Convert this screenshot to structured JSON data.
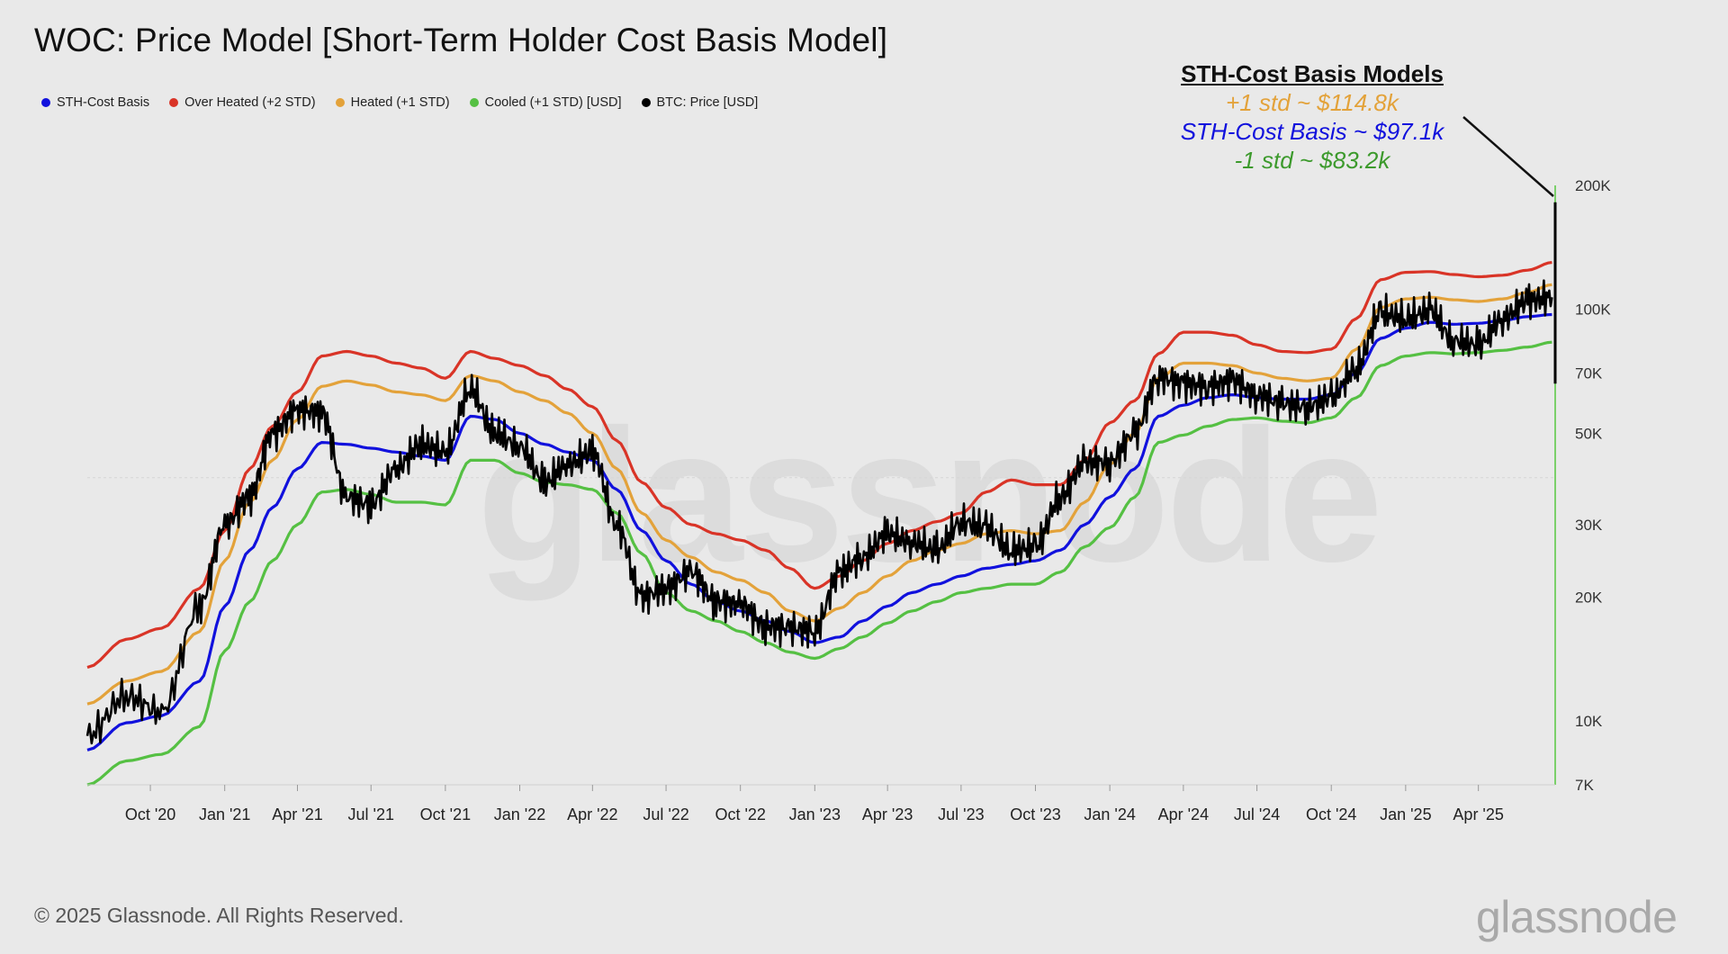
{
  "title": "WOC: Price Model [Short-Term Holder Cost Basis Model]",
  "legend": [
    {
      "label": "STH-Cost Basis",
      "color": "#1111dd"
    },
    {
      "label": "Over Heated (+2 STD)",
      "color": "#d93427"
    },
    {
      "label": "Heated (+1 STD)",
      "color": "#e3a23a"
    },
    {
      "label": "Cooled (+1 STD) [USD]",
      "color": "#55c043"
    },
    {
      "label": "BTC: Price [USD]",
      "color": "#000000"
    }
  ],
  "annotation": {
    "title": "STH-Cost Basis Models",
    "lines": [
      {
        "text": "+1 std ~ $114.8k",
        "color": "#e3a23a"
      },
      {
        "text": "STH-Cost Basis ~ $97.1k",
        "color": "#1111dd"
      },
      {
        "text": "-1 std ~ $83.2k",
        "color": "#3c9a2c"
      }
    ]
  },
  "watermark": "glassnode",
  "footer": "© 2025 Glassnode. All Rights Reserved.",
  "brand": "glassnode",
  "chart_data": {
    "type": "line",
    "y_scale": "log",
    "ylim": [
      7000,
      200000
    ],
    "xlim": [
      "2020-07-15",
      "2025-07-05"
    ],
    "y_ticks": [
      {
        "value": 200000,
        "label": "200K"
      },
      {
        "value": 100000,
        "label": "100K"
      },
      {
        "value": 70000,
        "label": "70K"
      },
      {
        "value": 50000,
        "label": "50K"
      },
      {
        "value": 30000,
        "label": "30K"
      },
      {
        "value": 20000,
        "label": "20K"
      },
      {
        "value": 10000,
        "label": "10K"
      },
      {
        "value": 7000,
        "label": "7K"
      }
    ],
    "x_ticks": [
      {
        "date": "2020-10-01",
        "label": "Oct '20"
      },
      {
        "date": "2021-01-01",
        "label": "Jan '21"
      },
      {
        "date": "2021-04-01",
        "label": "Apr '21"
      },
      {
        "date": "2021-07-01",
        "label": "Jul '21"
      },
      {
        "date": "2021-10-01",
        "label": "Oct '21"
      },
      {
        "date": "2022-01-01",
        "label": "Jan '22"
      },
      {
        "date": "2022-04-01",
        "label": "Apr '22"
      },
      {
        "date": "2022-07-01",
        "label": "Jul '22"
      },
      {
        "date": "2022-10-01",
        "label": "Oct '22"
      },
      {
        "date": "2023-01-01",
        "label": "Jan '23"
      },
      {
        "date": "2023-04-01",
        "label": "Apr '23"
      },
      {
        "date": "2023-07-01",
        "label": "Jul '23"
      },
      {
        "date": "2023-10-01",
        "label": "Oct '23"
      },
      {
        "date": "2024-01-01",
        "label": "Jan '24"
      },
      {
        "date": "2024-04-01",
        "label": "Apr '24"
      },
      {
        "date": "2024-07-01",
        "label": "Jul '24"
      },
      {
        "date": "2024-10-01",
        "label": "Oct '24"
      },
      {
        "date": "2025-01-01",
        "label": "Jan '25"
      },
      {
        "date": "2025-04-01",
        "label": "Apr '25"
      }
    ],
    "x": [
      "2020-07-15",
      "2020-09-01",
      "2020-10-15",
      "2020-12-01",
      "2021-01-01",
      "2021-02-01",
      "2021-03-01",
      "2021-04-01",
      "2021-05-01",
      "2021-06-01",
      "2021-07-01",
      "2021-08-01",
      "2021-09-01",
      "2021-10-01",
      "2021-11-01",
      "2021-12-01",
      "2022-01-01",
      "2022-02-01",
      "2022-03-01",
      "2022-04-01",
      "2022-05-01",
      "2022-06-01",
      "2022-07-01",
      "2022-08-01",
      "2022-09-01",
      "2022-10-01",
      "2022-11-01",
      "2022-12-01",
      "2023-01-01",
      "2023-02-01",
      "2023-03-01",
      "2023-04-01",
      "2023-05-01",
      "2023-06-01",
      "2023-07-01",
      "2023-08-01",
      "2023-09-01",
      "2023-10-01",
      "2023-11-01",
      "2023-12-01",
      "2024-01-01",
      "2024-02-01",
      "2024-03-01",
      "2024-04-01",
      "2024-05-01",
      "2024-06-01",
      "2024-07-01",
      "2024-08-01",
      "2024-09-01",
      "2024-10-01",
      "2024-11-01",
      "2024-12-01",
      "2025-01-01",
      "2025-02-01",
      "2025-03-01",
      "2025-04-01",
      "2025-05-01",
      "2025-06-01",
      "2025-07-01"
    ],
    "series": [
      {
        "name": "Over Heated (+2 STD)",
        "color": "#d93427",
        "values": [
          13500,
          15800,
          16800,
          21000,
          29000,
          41000,
          52000,
          63000,
          77000,
          79000,
          77000,
          74000,
          72000,
          68000,
          79000,
          76000,
          73000,
          69000,
          64000,
          58000,
          48000,
          38000,
          33000,
          30000,
          28500,
          27500,
          26000,
          23500,
          21000,
          22500,
          24500,
          27000,
          29000,
          30500,
          32000,
          36000,
          38500,
          37500,
          37500,
          43000,
          53000,
          60000,
          78000,
          88000,
          88000,
          86500,
          82000,
          79000,
          78500,
          80000,
          95000,
          118000,
          123000,
          123500,
          121500,
          120000,
          121000,
          124500,
          130000
        ]
      },
      {
        "name": "Heated (+1 STD)",
        "color": "#e3a23a",
        "values": [
          11000,
          12500,
          13200,
          16500,
          24500,
          34000,
          43000,
          54000,
          65000,
          67000,
          65500,
          63000,
          62000,
          60000,
          69000,
          67000,
          63000,
          60000,
          56000,
          50000,
          41000,
          32000,
          27500,
          25000,
          23000,
          22000,
          20500,
          18500,
          17500,
          18800,
          20500,
          22500,
          24500,
          26000,
          27000,
          28500,
          29000,
          28500,
          29000,
          34000,
          42000,
          50000,
          68000,
          74000,
          74000,
          73000,
          70000,
          68000,
          67000,
          68000,
          80000,
          101000,
          106000,
          107000,
          105500,
          104500,
          106000,
          110000,
          114800
        ]
      },
      {
        "name": "STH-Cost Basis",
        "color": "#1111dd",
        "values": [
          8500,
          9900,
          10300,
          12500,
          19000,
          26000,
          33000,
          41000,
          47500,
          47000,
          46000,
          45000,
          44000,
          43000,
          55000,
          54000,
          50000,
          47000,
          45000,
          43000,
          36500,
          29000,
          24500,
          21500,
          19500,
          18500,
          17500,
          16500,
          15500,
          16000,
          17500,
          19000,
          20500,
          21500,
          22500,
          23500,
          24000,
          24500,
          26000,
          30000,
          35000,
          41000,
          55000,
          58500,
          61000,
          62000,
          61000,
          60500,
          60500,
          62000,
          70000,
          85000,
          90000,
          93000,
          92000,
          92500,
          94000,
          96000,
          97100
        ]
      },
      {
        "name": "Cooled (+1 STD) [USD]",
        "color": "#55c043",
        "values": [
          7000,
          8000,
          8300,
          9700,
          14800,
          19500,
          24500,
          30000,
          36000,
          36500,
          35500,
          34000,
          34000,
          33500,
          43000,
          43000,
          40000,
          38000,
          37500,
          36500,
          32000,
          25500,
          20500,
          18500,
          17500,
          16500,
          15500,
          14700,
          14200,
          15000,
          16000,
          17300,
          18500,
          19500,
          20500,
          21000,
          21500,
          21500,
          23000,
          26500,
          29500,
          35000,
          47500,
          49500,
          52000,
          54000,
          54500,
          53500,
          53000,
          54500,
          61000,
          73000,
          77000,
          78500,
          78000,
          78500,
          79500,
          81000,
          83200
        ]
      },
      {
        "name": "BTC: Price [USD]",
        "color": "#000000",
        "values": [
          9200,
          11500,
          10500,
          19000,
          30000,
          35000,
          50000,
          57000,
          56000,
          35000,
          33500,
          41000,
          47000,
          45000,
          64000,
          50000,
          46500,
          38000,
          42000,
          45000,
          30000,
          20000,
          21000,
          23000,
          19500,
          19200,
          17000,
          16800,
          16600,
          23000,
          25000,
          28500,
          27200,
          26000,
          30500,
          29500,
          26000,
          26500,
          35000,
          42500,
          42500,
          50000,
          68500,
          66000,
          65000,
          67000,
          62000,
          59000,
          58000,
          61000,
          72000,
          98000,
          95000,
          99000,
          84000,
          82000,
          95000,
          105000,
          107000
        ]
      }
    ],
    "last_marker": {
      "series": "BTC: Price [USD]",
      "min": 66000,
      "max": 182000
    }
  }
}
